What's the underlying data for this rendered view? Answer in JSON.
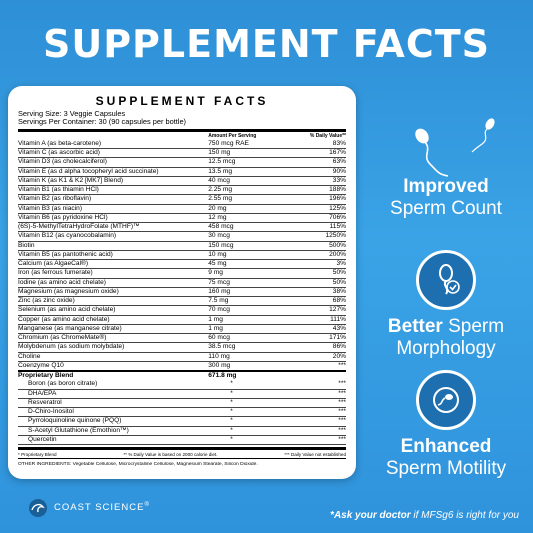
{
  "headline": "SUPPLEMENT FACTS",
  "label": {
    "title": "SUPPLEMENT FACTS",
    "serving_size": "Serving Size: 3 Veggie Capsules",
    "servings_per_container": "Servings Per Container: 30 (90 capsules per bottle)",
    "col_amount": "Amount Per Serving",
    "col_dv": "% Daily Value**",
    "nutrients": [
      {
        "name": "Vitamin A (as beta-carotene)",
        "amount": "750 mcg RAE",
        "dv": "83%"
      },
      {
        "name": "Vitamin C (as ascorbic acid)",
        "amount": "150 mg",
        "dv": "167%"
      },
      {
        "name": "Vitamin D3 (as cholecalciferol)",
        "amount": "12.5 mcg",
        "dv": "63%"
      },
      {
        "name": "Vitamin E (as d alpha tocopheryl acid succinate)",
        "amount": "13.5 mg",
        "dv": "90%"
      },
      {
        "name": "Vitamin K (as K1 & K2 [MK7] Blend)",
        "amount": "40 mcg",
        "dv": "33%"
      },
      {
        "name": "Vitamin B1 (as thiamin HCl)",
        "amount": "2.25 mg",
        "dv": "188%"
      },
      {
        "name": "Vitamin B2 (as riboflavin)",
        "amount": "2.55 mg",
        "dv": "196%"
      },
      {
        "name": "Vitamin B3 (as niacin)",
        "amount": "20 mg",
        "dv": "125%"
      },
      {
        "name": "Vitamin B6 (as pyridoxine HCl)",
        "amount": "12 mg",
        "dv": "706%"
      },
      {
        "name": "(6S)-5-MethylTetraHydroFolate (MTHF)™",
        "amount": "458 mcg",
        "dv": "115%"
      },
      {
        "name": "Vitamin B12 (as cyanocobalamin)",
        "amount": "30 mcg",
        "dv": "1250%"
      },
      {
        "name": "Biotin",
        "amount": "150 mcg",
        "dv": "500%"
      },
      {
        "name": "Vitamin B5 (as pantothenic acid)",
        "amount": "10 mg",
        "dv": "200%"
      },
      {
        "name": "Calcium (as AlgaeCal®)",
        "amount": "45 mg",
        "dv": "3%"
      },
      {
        "name": "Iron (as ferrous fumerate)",
        "amount": "9 mg",
        "dv": "50%"
      },
      {
        "name": "Iodine (as amino acid chelate)",
        "amount": "75 mcg",
        "dv": "50%"
      },
      {
        "name": "Magnesium (as magnesium oxide)",
        "amount": "160 mg",
        "dv": "38%"
      },
      {
        "name": "Zinc (as zinc oxide)",
        "amount": "7.5 mg",
        "dv": "68%"
      },
      {
        "name": "Selenium (as amino acid chelate)",
        "amount": "70 mcg",
        "dv": "127%"
      },
      {
        "name": "Copper (as amino acid chelate)",
        "amount": "1 mg",
        "dv": "111%"
      },
      {
        "name": "Manganese (as manganese citrate)",
        "amount": "1 mg",
        "dv": "43%"
      },
      {
        "name": "Chromium (as ChromeMate®)",
        "amount": "60 mcg",
        "dv": "171%"
      },
      {
        "name": "Molybdenum (as sodium molybdate)",
        "amount": "38.5 mcg",
        "dv": "86%"
      },
      {
        "name": "Choline",
        "amount": "110 mg",
        "dv": "20%"
      },
      {
        "name": "Coenzyme Q10",
        "amount": "300 mg",
        "dv": "***"
      }
    ],
    "proprietary_blend": {
      "name": "Proprietary Blend",
      "amount": "671.8 mg"
    },
    "blend_items": [
      {
        "name": "Boron (as boron citrate)",
        "amount": "*",
        "dv": "***"
      },
      {
        "name": "DHA/EPA",
        "amount": "*",
        "dv": "***"
      },
      {
        "name": "Resveratrol",
        "amount": "*",
        "dv": "***"
      },
      {
        "name": "D-Chiro-Inositol",
        "amount": "*",
        "dv": "***"
      },
      {
        "name": "Pyrroloquinoline quinone (PQQ)",
        "amount": "*",
        "dv": "***"
      },
      {
        "name": "S-Acetyl Glutathione (Emothion™)",
        "amount": "*",
        "dv": "***"
      },
      {
        "name": "Quercetin",
        "amount": "*",
        "dv": "***"
      }
    ],
    "footnote_1": "* Proprietary Blend",
    "footnote_2": "** % Daily Value is based on 2000 calorie diet.",
    "footnote_3": "*** Daily Value not established",
    "other_ingredients": "OTHER INGREDIENTS: Vegetable Cellulose, Microcrystalline Cellulose, Magnesium Stearate, Silicon Dioxide."
  },
  "benefits": [
    {
      "bold": "Improved",
      "light": "Sperm Count",
      "icon": "sperm-icon"
    },
    {
      "bold": "Better",
      "light": "Sperm",
      "light2": "Morphology",
      "icon": "sperm-check-icon"
    },
    {
      "bold": "Enhanced",
      "light": "Sperm Motility",
      "icon": "sperm-motion-icon"
    }
  ],
  "brand": {
    "name": "COAST SCIENCE",
    "mark": "®"
  },
  "cta": {
    "prefix": "*Ask your doctor",
    "italic": " if MFSg6 is right for you"
  },
  "colors": {
    "background": "#3aa3e6",
    "icon_circle": "#1d6fb0",
    "label": "#ffffff"
  }
}
